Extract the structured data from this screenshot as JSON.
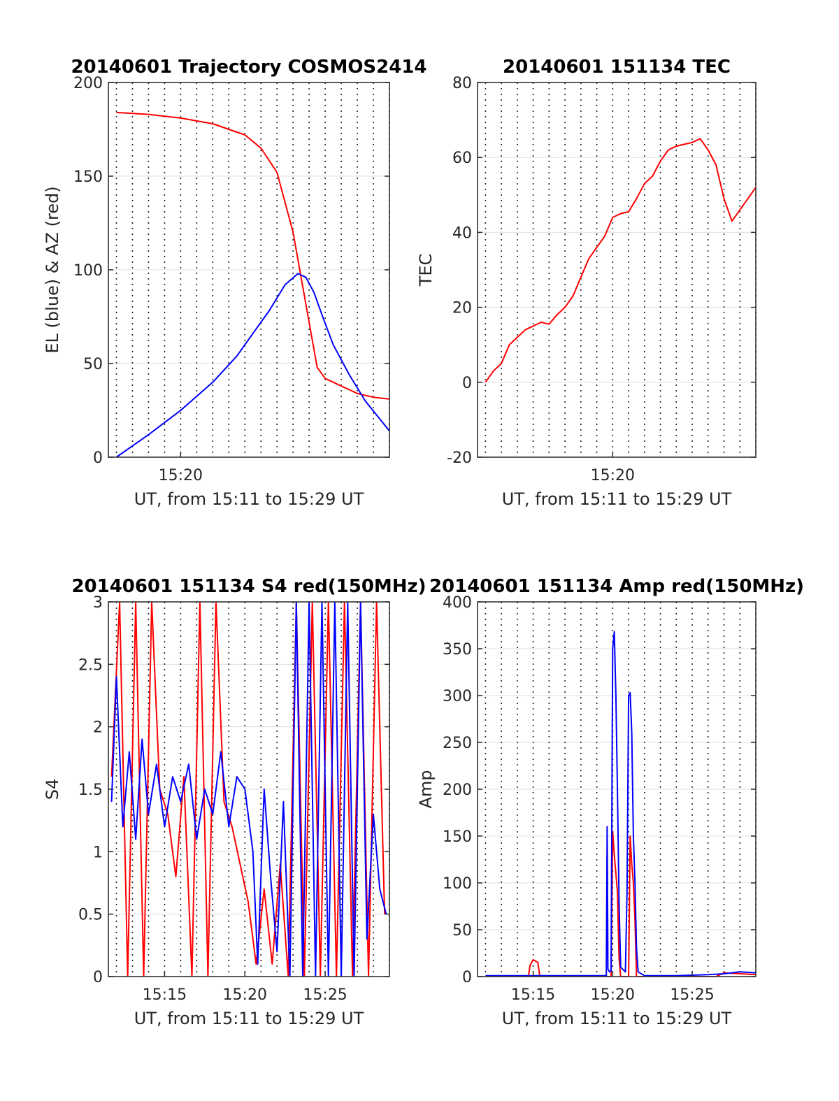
{
  "chart_data": [
    {
      "type": "line",
      "title": "20140601 Trajectory COSMOS2414",
      "xlabel": "UT, from 15:11 to 15:29 UT",
      "ylabel": "EL (blue) & AZ (red)",
      "xlim": [
        15.5,
        33
      ],
      "ylim": [
        0,
        200
      ],
      "xticks": [
        20
      ],
      "xticklabels": [
        "15:20"
      ],
      "yticks": [
        0,
        50,
        100,
        150,
        200
      ],
      "yticklabels": [
        "0",
        "50",
        "100",
        "150",
        "200"
      ],
      "grid": true,
      "series": [
        {
          "color": "#ff0000",
          "x": [
            16.0,
            18.0,
            20.0,
            22.0,
            24.0,
            25.0,
            26.0,
            27.0,
            28.0,
            28.5,
            29.0,
            29.5,
            30.0,
            30.5,
            31.0,
            31.5,
            32.0,
            33.0
          ],
          "y": [
            184,
            183,
            181,
            178,
            172,
            165,
            152,
            120,
            72,
            48,
            42,
            40,
            38,
            36,
            34,
            33,
            32,
            31
          ]
        },
        {
          "color": "#0000ff",
          "x": [
            16.0,
            18.0,
            20.0,
            22.0,
            23.5,
            24.5,
            25.5,
            26.5,
            27.3,
            27.8,
            28.3,
            28.8,
            29.5,
            30.5,
            31.5,
            33.0
          ],
          "y": [
            0,
            12,
            25,
            40,
            54,
            66,
            78,
            92,
            98,
            96,
            88,
            76,
            60,
            44,
            30,
            14
          ]
        }
      ]
    },
    {
      "type": "line",
      "title": "20140601 151134 TEC",
      "xlabel": "UT, from 15:11 to 15:29 UT",
      "ylabel": "TEC",
      "xlim": [
        11.5,
        29
      ],
      "ylim": [
        -20,
        80
      ],
      "xticks": [
        20
      ],
      "xticklabels": [
        "15:20"
      ],
      "yticks": [
        -20,
        0,
        20,
        40,
        60,
        80
      ],
      "yticklabels": [
        "-20",
        "0",
        "20",
        "40",
        "60",
        "80"
      ],
      "grid": true,
      "series": [
        {
          "color": "#ff0000",
          "x": [
            12.0,
            12.5,
            13.0,
            13.5,
            14.0,
            14.5,
            15.0,
            15.5,
            16.0,
            16.5,
            17.0,
            17.5,
            18.0,
            18.5,
            19.0,
            19.5,
            20.0,
            20.5,
            21.0,
            21.5,
            22.0,
            22.5,
            23.0,
            23.5,
            24.0,
            24.5,
            25.0,
            25.5,
            26.0,
            26.5,
            27.0,
            27.5,
            28.0,
            28.5,
            29.0
          ],
          "y": [
            0,
            3,
            5,
            10,
            12,
            14,
            15,
            16,
            15.5,
            18,
            20,
            23,
            28,
            33,
            36,
            39,
            44,
            45,
            45.5,
            49,
            53,
            55,
            59,
            62,
            63,
            63.5,
            64,
            65,
            62,
            58,
            49,
            43,
            46,
            49,
            52
          ]
        }
      ]
    },
    {
      "type": "line",
      "title": "20140601 151134 S4 red(150MHz)",
      "xlabel": "UT, from 15:11 to 15:29 UT",
      "ylabel": "S4",
      "xlim": [
        11.5,
        29
      ],
      "ylim": [
        0,
        3
      ],
      "xticks": [
        15,
        20,
        25
      ],
      "xticklabels": [
        "15:15",
        "15:20",
        "15:25"
      ],
      "yticks": [
        0,
        0.5,
        1,
        1.5,
        2,
        2.5,
        3
      ],
      "yticklabels": [
        "0",
        "0.5",
        "1",
        "1.5",
        "2",
        "2.5",
        "3"
      ],
      "grid": true,
      "series": [
        {
          "color": "#ff0000",
          "x": [
            11.7,
            12.2,
            12.7,
            13.2,
            13.7,
            14.2,
            14.7,
            15.2,
            15.7,
            16.2,
            16.7,
            17.2,
            17.7,
            18.2,
            18.7,
            19.2,
            19.7,
            20.2,
            20.7,
            21.2,
            21.7,
            22.2,
            22.7,
            23.2,
            23.7,
            24.2,
            24.7,
            25.2,
            25.7,
            26.2,
            26.7,
            27.2,
            27.7,
            28.2,
            28.7
          ],
          "y": [
            1.6,
            3.0,
            0.0,
            3.0,
            0.0,
            3.0,
            1.5,
            1.3,
            0.8,
            1.6,
            0.0,
            3.0,
            0.0,
            3.0,
            1.4,
            1.2,
            0.9,
            0.6,
            0.1,
            0.7,
            0.1,
            0.9,
            0.0,
            3.0,
            0.0,
            3.0,
            0.0,
            3.0,
            0.0,
            3.0,
            0.0,
            3.0,
            0.0,
            3.0,
            0.5
          ]
        },
        {
          "color": "#0000ff",
          "x": [
            11.7,
            12.0,
            12.4,
            12.8,
            13.2,
            13.6,
            14.0,
            14.5,
            15.0,
            15.5,
            16.0,
            16.5,
            17.0,
            17.5,
            18.0,
            18.5,
            19.0,
            19.5,
            20.0,
            20.5,
            20.8,
            21.2,
            21.6,
            22.0,
            22.4,
            22.8,
            23.2,
            23.6,
            24.0,
            24.4,
            24.8,
            25.2,
            25.6,
            26.0,
            26.4,
            26.8,
            27.2,
            27.6,
            28.0,
            28.4,
            28.8
          ],
          "y": [
            1.4,
            2.4,
            1.2,
            1.8,
            1.1,
            1.9,
            1.3,
            1.7,
            1.2,
            1.6,
            1.4,
            1.7,
            1.1,
            1.5,
            1.3,
            1.8,
            1.2,
            1.6,
            1.5,
            1.0,
            0.1,
            1.5,
            0.8,
            0.2,
            1.4,
            0.0,
            3.0,
            0.0,
            3.0,
            0.0,
            3.0,
            0.0,
            3.0,
            0.0,
            3.0,
            0.0,
            3.0,
            0.3,
            1.3,
            0.7,
            0.5
          ]
        }
      ]
    },
    {
      "type": "line",
      "title": "20140601 151134 Amp red(150MHz)",
      "xlabel": "UT, from 15:11 to 15:29 UT",
      "ylabel": "Amp",
      "xlim": [
        11.5,
        29
      ],
      "ylim": [
        0,
        400
      ],
      "xticks": [
        15,
        20,
        25
      ],
      "xticklabels": [
        "15:15",
        "15:20",
        "15:25"
      ],
      "yticks": [
        0,
        50,
        100,
        150,
        200,
        250,
        300,
        350,
        400
      ],
      "yticklabels": [
        "0",
        "50",
        "100",
        "150",
        "200",
        "250",
        "300",
        "350",
        "400"
      ],
      "grid": true,
      "series": [
        {
          "color": "#ff0000",
          "x": [
            12.0,
            14.7,
            14.8,
            15.0,
            15.3,
            15.4,
            15.5,
            19.9,
            20.0,
            20.1,
            20.2,
            20.3,
            20.4,
            20.5,
            21.0,
            21.1,
            21.2,
            21.3,
            21.4,
            21.5,
            22.0,
            26.5,
            27.0,
            29.0
          ],
          "y": [
            0,
            0,
            12,
            18,
            15,
            2,
            0,
            0,
            155,
            130,
            110,
            90,
            20,
            0,
            0,
            150,
            120,
            100,
            60,
            0,
            0,
            0,
            4,
            2
          ]
        },
        {
          "color": "#0000ff",
          "x": [
            12.0,
            14.0,
            16.0,
            18.0,
            19.6,
            19.65,
            19.7,
            19.8,
            19.9,
            20.0,
            20.1,
            20.2,
            20.3,
            20.4,
            20.5,
            20.8,
            20.9,
            21.0,
            21.1,
            21.2,
            21.3,
            21.4,
            21.5,
            21.6,
            22.0,
            24.0,
            26.0,
            27.0,
            28.0,
            29.0
          ],
          "y": [
            1,
            1,
            1,
            1,
            1,
            160,
            8,
            5,
            6,
            350,
            368,
            300,
            200,
            80,
            10,
            5,
            90,
            300,
            303,
            260,
            150,
            100,
            30,
            5,
            1,
            1,
            2,
            3,
            5,
            4
          ]
        }
      ]
    }
  ]
}
